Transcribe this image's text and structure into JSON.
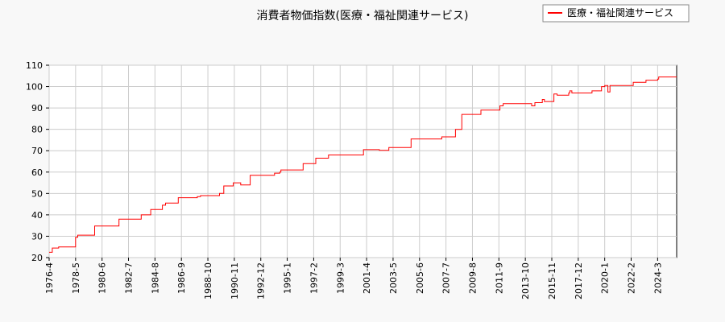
{
  "chart_data": {
    "type": "line",
    "title": "消費者物価指数(医療・福祉関連サービス)",
    "xlabel": "",
    "ylabel": "",
    "ylim": [
      20,
      110
    ],
    "yticks": [
      20,
      30,
      40,
      50,
      60,
      70,
      80,
      90,
      100,
      110
    ],
    "xlim": [
      "1976-04",
      "2025-09"
    ],
    "xticks": [
      "1976-4",
      "1978-5",
      "1980-6",
      "1982-7",
      "1984-8",
      "1986-9",
      "1988-10",
      "1990-11",
      "1992-12",
      "1995-1",
      "1997-2",
      "1999-3",
      "2001-4",
      "2003-5",
      "2005-6",
      "2007-7",
      "2009-8",
      "2011-9",
      "2013-10",
      "2015-11",
      "2017-12",
      "2020-1",
      "2022-2",
      "2024-3"
    ],
    "grid": true,
    "legend_position": "top-right",
    "series": [
      {
        "name": "医療・福祉関連サービス",
        "color": "#ff0000",
        "points": [
          [
            "1976-04",
            22.5
          ],
          [
            "1976-07",
            24.5
          ],
          [
            "1977-01",
            25.0
          ],
          [
            "1978-03",
            25.0
          ],
          [
            "1978-05",
            29.5
          ],
          [
            "1978-07",
            30.5
          ],
          [
            "1979-10",
            30.5
          ],
          [
            "1979-11",
            34.8
          ],
          [
            "1981-09",
            34.8
          ],
          [
            "1981-10",
            38.0
          ],
          [
            "1983-06",
            38.0
          ],
          [
            "1983-07",
            40.0
          ],
          [
            "1984-03",
            40.0
          ],
          [
            "1984-04",
            42.5
          ],
          [
            "1985-02",
            42.5
          ],
          [
            "1985-03",
            44.5
          ],
          [
            "1985-06",
            45.5
          ],
          [
            "1986-05",
            45.5
          ],
          [
            "1986-06",
            48.0
          ],
          [
            "1987-12",
            48.5
          ],
          [
            "1988-03",
            49.0
          ],
          [
            "1989-09",
            50.0
          ],
          [
            "1990-01",
            53.5
          ],
          [
            "1990-09",
            53.5
          ],
          [
            "1990-10",
            55.0
          ],
          [
            "1991-05",
            54.0
          ],
          [
            "1992-01",
            54.0
          ],
          [
            "1992-02",
            58.5
          ],
          [
            "1993-12",
            58.5
          ],
          [
            "1994-01",
            59.5
          ],
          [
            "1994-06",
            60.0
          ],
          [
            "1994-07",
            61.0
          ],
          [
            "1996-03",
            61.0
          ],
          [
            "1996-04",
            64.0
          ],
          [
            "1997-03",
            64.0
          ],
          [
            "1997-04",
            66.5
          ],
          [
            "1998-03",
            66.5
          ],
          [
            "1998-04",
            68.0
          ],
          [
            "2000-12",
            68.0
          ],
          [
            "2001-01",
            70.5
          ],
          [
            "2002-03",
            70.5
          ],
          [
            "2002-04",
            70.2
          ],
          [
            "2002-12",
            70.2
          ],
          [
            "2003-01",
            71.5
          ],
          [
            "2004-09",
            71.5
          ],
          [
            "2004-10",
            75.5
          ],
          [
            "2007-02",
            75.5
          ],
          [
            "2007-03",
            76.5
          ],
          [
            "2008-03",
            76.5
          ],
          [
            "2008-04",
            80.0
          ],
          [
            "2008-09",
            80.0
          ],
          [
            "2008-10",
            87.0
          ],
          [
            "2010-03",
            87.0
          ],
          [
            "2010-04",
            89.0
          ],
          [
            "2011-09",
            89.0
          ],
          [
            "2011-10",
            91.0
          ],
          [
            "2012-01",
            92.0
          ],
          [
            "2014-03",
            92.0
          ],
          [
            "2014-04",
            91.0
          ],
          [
            "2014-07",
            92.5
          ],
          [
            "2015-01",
            92.5
          ],
          [
            "2015-02",
            94.0
          ],
          [
            "2015-04",
            93.0
          ],
          [
            "2015-12",
            93.0
          ],
          [
            "2016-01",
            96.5
          ],
          [
            "2016-04",
            96.0
          ],
          [
            "2017-03",
            97.0
          ],
          [
            "2017-04",
            98.0
          ],
          [
            "2017-06",
            97.0
          ],
          [
            "2018-12",
            97.0
          ],
          [
            "2019-01",
            98.0
          ],
          [
            "2019-09",
            98.0
          ],
          [
            "2019-10",
            100.0
          ],
          [
            "2020-01",
            100.5
          ],
          [
            "2020-03",
            100.5
          ],
          [
            "2020-04",
            97.5
          ],
          [
            "2020-06",
            100.5
          ],
          [
            "2022-03",
            100.5
          ],
          [
            "2022-04",
            102.0
          ],
          [
            "2023-03",
            102.0
          ],
          [
            "2023-04",
            103.0
          ],
          [
            "2024-03",
            103.5
          ],
          [
            "2024-04",
            104.5
          ],
          [
            "2025-09",
            104.5
          ]
        ]
      }
    ]
  }
}
